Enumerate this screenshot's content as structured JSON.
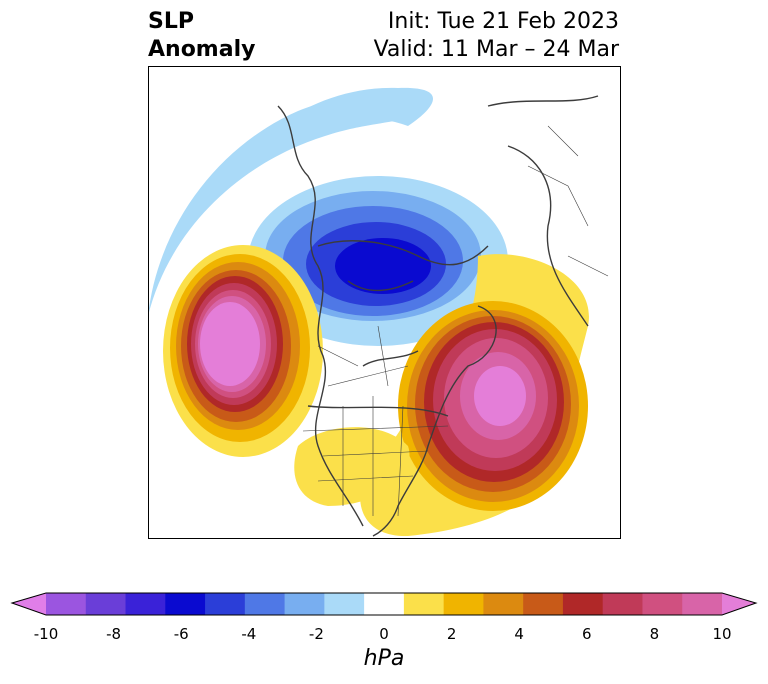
{
  "title": {
    "line1": "SLP",
    "line2": "Anomaly",
    "init": "Init: Tue 21 Feb 2023",
    "valid": "Valid: 11 Mar – 24 Mar"
  },
  "colorbar": {
    "unit": "hPa",
    "min": -10,
    "max": 10,
    "ticks": [
      "-10",
      "-8",
      "-6",
      "-4",
      "-2",
      "0",
      "2",
      "4",
      "6",
      "8",
      "10"
    ],
    "colors": [
      "#e07ee8",
      "#9b55e0",
      "#6a3ed8",
      "#3a22d8",
      "#0a0ad0",
      "#2b3ed8",
      "#4f78e6",
      "#78aef0",
      "#aadaf8",
      "#ffffff",
      "#fbe04a",
      "#f0b400",
      "#dc8a10",
      "#c85a18",
      "#b02828",
      "#c03a58",
      "#d05080",
      "#d864a8",
      "#e47ed8"
    ]
  },
  "map": {
    "projection": "polar stereographic (North America)",
    "anomaly_centers": [
      {
        "region": "Canadian Arctic / Hudson region",
        "sign": "negative",
        "min_hpa": -6
      },
      {
        "region": "Northeast Pacific off British Columbia",
        "sign": "positive",
        "max_hpa": 10
      },
      {
        "region": "North Atlantic off eastern North America",
        "sign": "positive",
        "max_hpa": 8
      }
    ]
  }
}
